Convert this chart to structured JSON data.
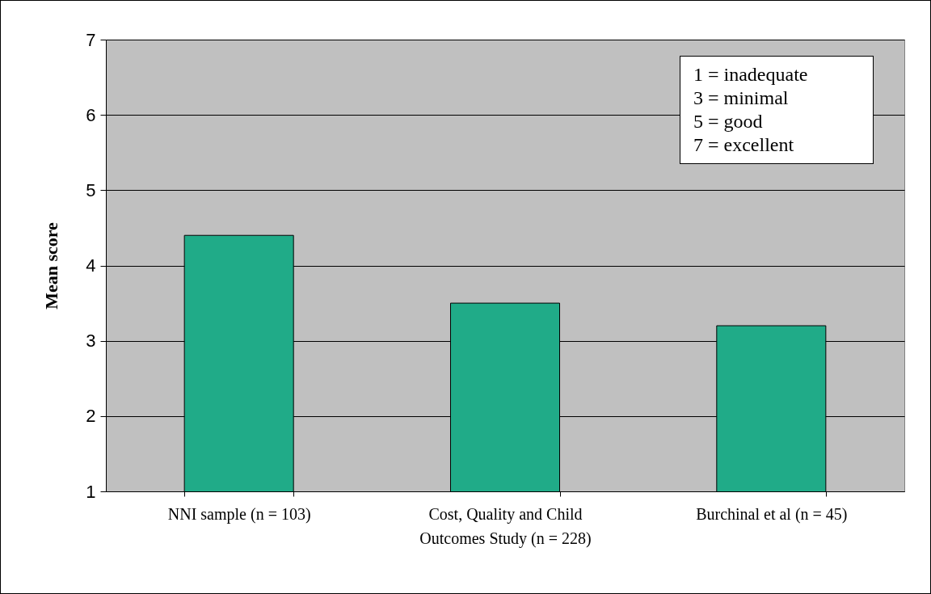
{
  "chart_data": {
    "type": "bar",
    "ylabel": "Mean score",
    "categories": [
      "NNI sample (n = 103)",
      "Cost, Quality and Child Outcomes Study (n = 228)",
      "Burchinal et al (n = 45)"
    ],
    "values": [
      4.4,
      3.5,
      3.2
    ],
    "color": "#20ab88",
    "ylim": [
      1,
      7
    ],
    "yticks": [
      1,
      2,
      3,
      4,
      5,
      6,
      7
    ],
    "grid": "y",
    "annotations": [
      "1 = inadequate",
      "3 = minimal",
      "5 = good",
      "7 = excellent"
    ]
  }
}
